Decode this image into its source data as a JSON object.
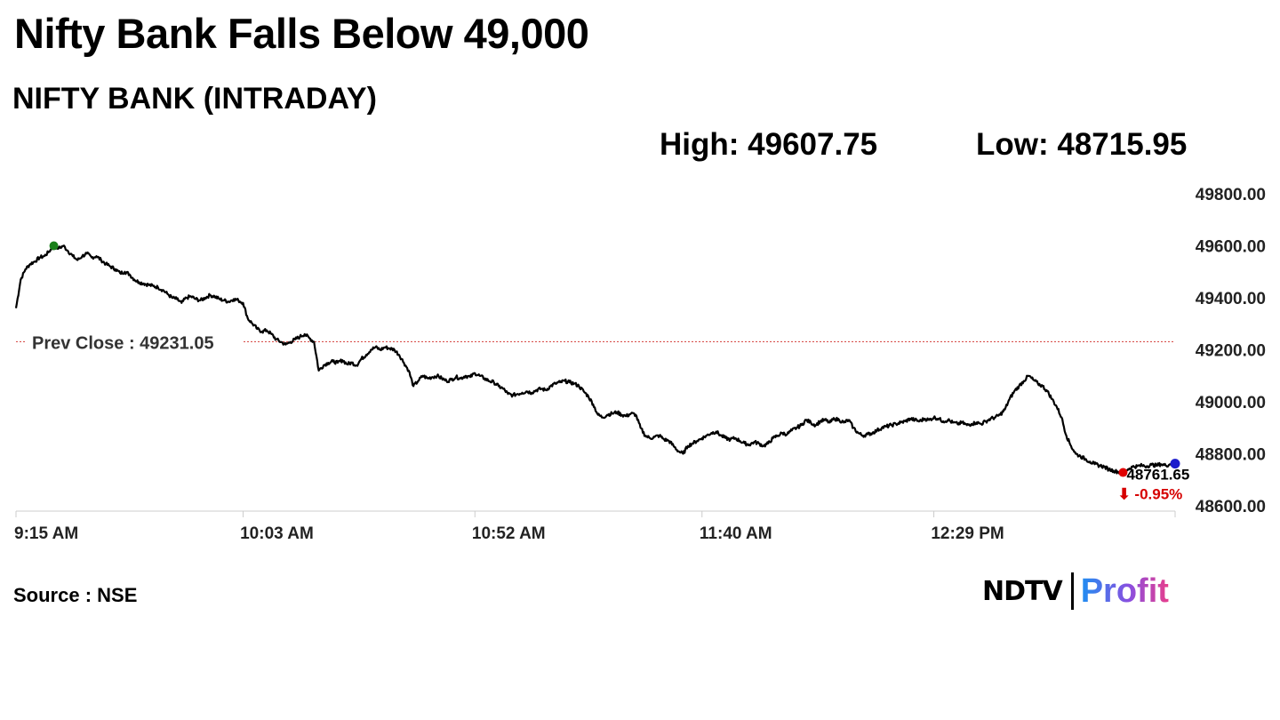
{
  "headline": "Nifty Bank Falls Below 49,000",
  "chart_data": {
    "type": "line",
    "title": "NIFTY BANK (INTRADAY)",
    "high_label": "High: 49607.75",
    "low_label": "Low: 48715.95",
    "x_tick_labels": [
      "9:15 AM",
      "10:03 AM",
      "10:52 AM",
      "11:40 AM",
      "12:29 PM"
    ],
    "x_ticks_minutes": [
      0,
      48,
      97,
      145,
      194
    ],
    "x_range_minutes": [
      0,
      245
    ],
    "ylim": [
      48600,
      49800
    ],
    "y_ticks": [
      49800,
      49600,
      49400,
      49200,
      49000,
      48800,
      48600
    ],
    "y_tick_labels": [
      "49800.00",
      "49600.00",
      "49400.00",
      "49200.00",
      "49000.00",
      "48800.00",
      "48600.00"
    ],
    "prev_close": 49231.05,
    "prev_close_label": "Prev Close : 49231.05",
    "last_value_label": "48761.65",
    "change_label": "⬇ -0.95%",
    "series": [
      {
        "points": [
          [
            0,
            49360
          ],
          [
            1,
            49470
          ],
          [
            2,
            49510
          ],
          [
            3,
            49530
          ],
          [
            4,
            49540
          ],
          [
            5,
            49555
          ],
          [
            6,
            49560
          ],
          [
            7,
            49578
          ],
          [
            8,
            49600
          ],
          [
            9,
            49590
          ],
          [
            10,
            49600
          ],
          [
            11,
            49580
          ],
          [
            12,
            49560
          ],
          [
            13,
            49545
          ],
          [
            14,
            49560
          ],
          [
            15,
            49570
          ],
          [
            16,
            49555
          ],
          [
            17,
            49560
          ],
          [
            18,
            49545
          ],
          [
            19,
            49530
          ],
          [
            20,
            49520
          ],
          [
            21,
            49510
          ],
          [
            22,
            49495
          ],
          [
            23,
            49500
          ],
          [
            24,
            49490
          ],
          [
            25,
            49470
          ],
          [
            26,
            49460
          ],
          [
            27,
            49455
          ],
          [
            28,
            49450
          ],
          [
            29,
            49445
          ],
          [
            30,
            49440
          ],
          [
            31,
            49430
          ],
          [
            32,
            49415
          ],
          [
            33,
            49400
          ],
          [
            34,
            49395
          ],
          [
            35,
            49380
          ],
          [
            36,
            49400
          ],
          [
            37,
            49405
          ],
          [
            38,
            49395
          ],
          [
            39,
            49390
          ],
          [
            40,
            49400
          ],
          [
            41,
            49410
          ],
          [
            42,
            49405
          ],
          [
            43,
            49395
          ],
          [
            44,
            49390
          ],
          [
            45,
            49385
          ],
          [
            46,
            49395
          ],
          [
            47,
            49390
          ],
          [
            48,
            49380
          ],
          [
            49,
            49320
          ],
          [
            50,
            49300
          ],
          [
            51,
            49280
          ],
          [
            52,
            49270
          ],
          [
            53,
            49275
          ],
          [
            54,
            49260
          ],
          [
            55,
            49240
          ],
          [
            56,
            49230
          ],
          [
            57,
            49220
          ],
          [
            58,
            49230
          ],
          [
            59,
            49240
          ],
          [
            60,
            49250
          ],
          [
            61,
            49260
          ],
          [
            62,
            49245
          ],
          [
            63,
            49230
          ],
          [
            64,
            49120
          ],
          [
            65,
            49140
          ],
          [
            66,
            49150
          ],
          [
            67,
            49155
          ],
          [
            68,
            49150
          ],
          [
            69,
            49160
          ],
          [
            70,
            49145
          ],
          [
            71,
            49150
          ],
          [
            72,
            49140
          ],
          [
            73,
            49165
          ],
          [
            74,
            49180
          ],
          [
            75,
            49200
          ],
          [
            76,
            49210
          ],
          [
            77,
            49200
          ],
          [
            78,
            49210
          ],
          [
            79,
            49205
          ],
          [
            80,
            49200
          ],
          [
            81,
            49180
          ],
          [
            82,
            49150
          ],
          [
            83,
            49120
          ],
          [
            84,
            49060
          ],
          [
            85,
            49080
          ],
          [
            86,
            49100
          ],
          [
            87,
            49090
          ],
          [
            88,
            49095
          ],
          [
            89,
            49100
          ],
          [
            90,
            49090
          ],
          [
            91,
            49080
          ],
          [
            92,
            49085
          ],
          [
            93,
            49095
          ],
          [
            94,
            49090
          ],
          [
            95,
            49100
          ],
          [
            96,
            49095
          ],
          [
            97,
            49110
          ],
          [
            98,
            49100
          ],
          [
            99,
            49090
          ],
          [
            100,
            49080
          ],
          [
            101,
            49075
          ],
          [
            102,
            49060
          ],
          [
            103,
            49050
          ],
          [
            104,
            49030
          ],
          [
            105,
            49025
          ],
          [
            106,
            49030
          ],
          [
            107,
            49035
          ],
          [
            108,
            49040
          ],
          [
            109,
            49035
          ],
          [
            110,
            49045
          ],
          [
            111,
            49050
          ],
          [
            112,
            49045
          ],
          [
            113,
            49060
          ],
          [
            114,
            49070
          ],
          [
            115,
            49075
          ],
          [
            116,
            49080
          ],
          [
            117,
            49075
          ],
          [
            118,
            49070
          ],
          [
            119,
            49060
          ],
          [
            120,
            49040
          ],
          [
            121,
            49020
          ],
          [
            122,
            48990
          ],
          [
            123,
            48950
          ],
          [
            124,
            48940
          ],
          [
            125,
            48950
          ],
          [
            126,
            48955
          ],
          [
            127,
            48960
          ],
          [
            128,
            48950
          ],
          [
            129,
            48945
          ],
          [
            130,
            48955
          ],
          [
            131,
            48950
          ],
          [
            132,
            48900
          ],
          [
            133,
            48870
          ],
          [
            134,
            48860
          ],
          [
            135,
            48865
          ],
          [
            136,
            48870
          ],
          [
            137,
            48855
          ],
          [
            138,
            48850
          ],
          [
            139,
            48830
          ],
          [
            140,
            48810
          ],
          [
            141,
            48800
          ],
          [
            142,
            48830
          ],
          [
            143,
            48840
          ],
          [
            144,
            48850
          ],
          [
            145,
            48860
          ],
          [
            146,
            48870
          ],
          [
            147,
            48880
          ],
          [
            148,
            48885
          ],
          [
            149,
            48870
          ],
          [
            150,
            48860
          ],
          [
            151,
            48855
          ],
          [
            152,
            48860
          ],
          [
            153,
            48850
          ],
          [
            154,
            48840
          ],
          [
            155,
            48835
          ],
          [
            156,
            48845
          ],
          [
            157,
            48840
          ],
          [
            158,
            48830
          ],
          [
            159,
            48840
          ],
          [
            160,
            48860
          ],
          [
            161,
            48870
          ],
          [
            162,
            48880
          ],
          [
            163,
            48875
          ],
          [
            164,
            48890
          ],
          [
            165,
            48900
          ],
          [
            166,
            48910
          ],
          [
            167,
            48930
          ],
          [
            168,
            48920
          ],
          [
            169,
            48910
          ],
          [
            170,
            48925
          ],
          [
            171,
            48930
          ],
          [
            172,
            48920
          ],
          [
            173,
            48935
          ],
          [
            174,
            48930
          ],
          [
            175,
            48920
          ],
          [
            176,
            48930
          ],
          [
            177,
            48900
          ],
          [
            178,
            48880
          ],
          [
            179,
            48870
          ],
          [
            180,
            48875
          ],
          [
            181,
            48880
          ],
          [
            182,
            48890
          ],
          [
            183,
            48900
          ],
          [
            184,
            48905
          ],
          [
            185,
            48910
          ],
          [
            186,
            48915
          ],
          [
            187,
            48920
          ],
          [
            188,
            48925
          ],
          [
            189,
            48935
          ],
          [
            190,
            48930
          ],
          [
            191,
            48925
          ],
          [
            192,
            48935
          ],
          [
            193,
            48930
          ],
          [
            194,
            48940
          ],
          [
            195,
            48935
          ],
          [
            196,
            48925
          ],
          [
            197,
            48930
          ],
          [
            198,
            48920
          ],
          [
            199,
            48915
          ],
          [
            200,
            48920
          ],
          [
            201,
            48910
          ],
          [
            202,
            48915
          ],
          [
            203,
            48920
          ],
          [
            204,
            48915
          ],
          [
            205,
            48925
          ],
          [
            206,
            48935
          ],
          [
            207,
            48940
          ],
          [
            208,
            48950
          ],
          [
            209,
            48970
          ],
          [
            210,
            49010
          ],
          [
            211,
            49040
          ],
          [
            212,
            49060
          ],
          [
            213,
            49080
          ],
          [
            214,
            49100
          ],
          [
            215,
            49085
          ],
          [
            216,
            49070
          ],
          [
            217,
            49060
          ],
          [
            218,
            49040
          ],
          [
            219,
            49010
          ],
          [
            220,
            48980
          ],
          [
            221,
            48940
          ],
          [
            222,
            48870
          ],
          [
            223,
            48830
          ],
          [
            224,
            48800
          ],
          [
            225,
            48790
          ],
          [
            226,
            48780
          ],
          [
            227,
            48770
          ],
          [
            228,
            48760
          ],
          [
            229,
            48755
          ],
          [
            230,
            48750
          ],
          [
            231,
            48740
          ],
          [
            232,
            48735
          ],
          [
            233,
            48730
          ],
          [
            234,
            48728
          ],
          [
            235,
            48740
          ],
          [
            236,
            48750
          ],
          [
            237,
            48752
          ],
          [
            238,
            48755
          ],
          [
            239,
            48752
          ],
          [
            240,
            48758
          ],
          [
            241,
            48755
          ],
          [
            242,
            48760
          ],
          [
            243,
            48755
          ],
          [
            244,
            48760
          ],
          [
            245,
            48762
          ]
        ],
        "color": "#000000"
      }
    ],
    "markers": {
      "high_point": {
        "x": 8,
        "y": 49600,
        "color": "#1a7f1a"
      },
      "low_point": {
        "x": 234,
        "y": 48728,
        "color": "#e00000"
      },
      "last_point": {
        "x": 245,
        "y": 48762,
        "color": "#1a1acc"
      }
    }
  },
  "footer": {
    "source": "Source : NSE"
  },
  "logo": {
    "ndtv": "NDTV",
    "profit": "Profit"
  },
  "colors": {
    "prev_close_line": "#d9534f",
    "axis": "#cccccc",
    "negative": "#d60000"
  }
}
